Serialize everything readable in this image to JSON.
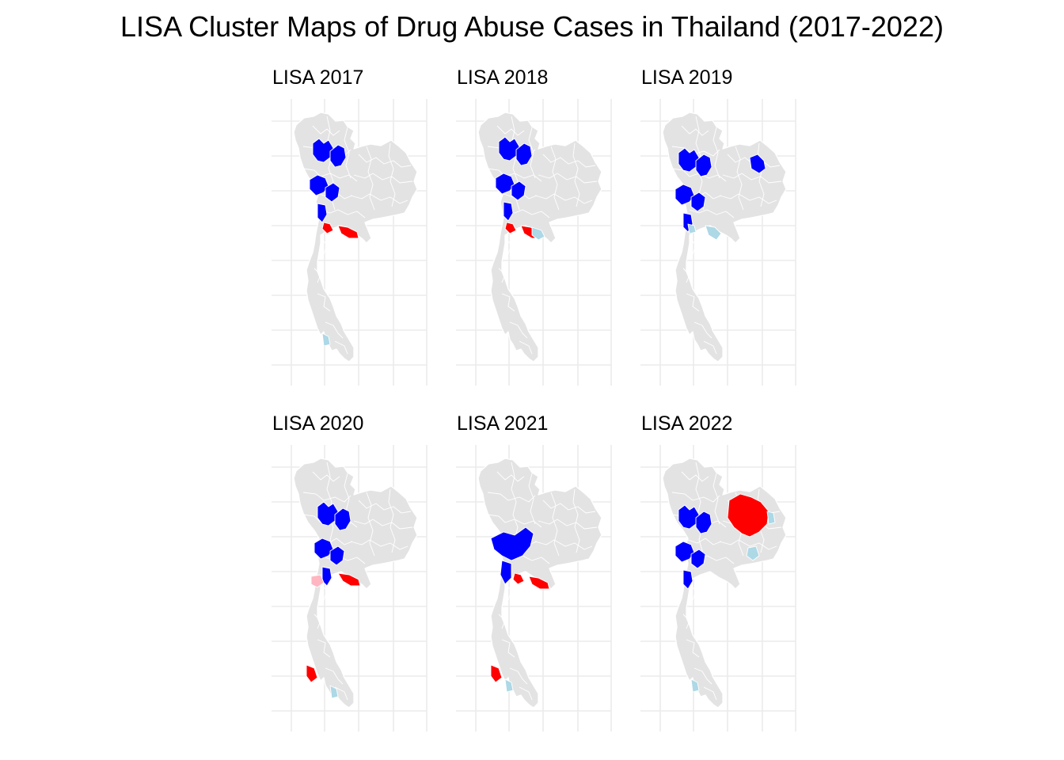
{
  "title": "LISA Cluster Maps of Drug Abuse Cases in Thailand (2017-2022)",
  "colors": {
    "background": "#ffffff",
    "province_fill": "#e3e3e3",
    "province_border": "#ffffff",
    "gridline": "#ebebeb",
    "High-High": "#ff0000",
    "Low-Low": "#0000ff",
    "Low-High": "#add8e6",
    "High-Low": "#ffb6c1"
  },
  "panels": [
    {
      "title": "LISA 2017",
      "clusters": [
        "north-Low-Low",
        "central-High-High",
        "south-Low-High"
      ]
    },
    {
      "title": "LISA 2018",
      "clusters": [
        "north-Low-Low",
        "central-High-High",
        "central-east-Low-High"
      ]
    },
    {
      "title": "LISA 2019",
      "clusters": [
        "north-Low-Low",
        "northeast-Low-Low",
        "central-Low-High"
      ]
    },
    {
      "title": "LISA 2020",
      "clusters": [
        "north-Low-Low",
        "central-High-Low",
        "central-east-High-High",
        "south-High-High",
        "south-Low-High"
      ]
    },
    {
      "title": "LISA 2021",
      "clusters": [
        "north-central-Low-Low",
        "central-High-High",
        "south-High-High",
        "south-Low-High"
      ]
    },
    {
      "title": "LISA 2022",
      "clusters": [
        "north-Low-Low",
        "northeast-High-High",
        "northeast-Low-High",
        "south-Low-High"
      ]
    }
  ]
}
